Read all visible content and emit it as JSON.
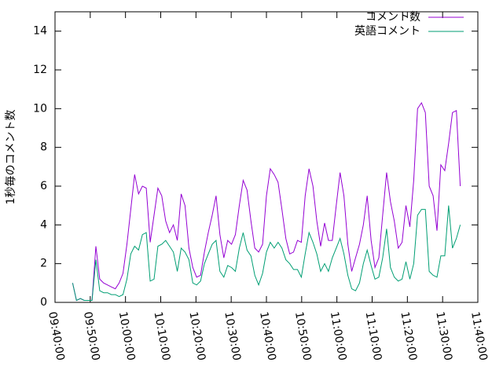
{
  "chart_data": {
    "type": "line",
    "ylabel": "1秒毎のコメント数",
    "x": [
      "09:45:00",
      "09:46:06",
      "09:47:12",
      "09:48:18",
      "09:49:24",
      "09:50:30",
      "09:51:36",
      "09:52:42",
      "09:53:48",
      "09:54:54",
      "09:56:00",
      "09:57:06",
      "09:58:12",
      "09:59:18",
      "10:00:24",
      "10:01:30",
      "10:02:36",
      "10:03:42",
      "10:04:48",
      "10:05:54",
      "10:07:00",
      "10:08:06",
      "10:09:12",
      "10:10:18",
      "10:11:24",
      "10:12:30",
      "10:13:36",
      "10:14:42",
      "10:15:48",
      "10:16:54",
      "10:18:00",
      "10:19:06",
      "10:20:12",
      "10:21:18",
      "10:22:24",
      "10:23:30",
      "10:24:36",
      "10:25:42",
      "10:26:48",
      "10:27:54",
      "10:29:00",
      "10:30:06",
      "10:31:12",
      "10:32:18",
      "10:33:24",
      "10:34:30",
      "10:35:36",
      "10:36:42",
      "10:37:48",
      "10:38:54",
      "10:40:00",
      "10:41:06",
      "10:42:12",
      "10:43:18",
      "10:44:24",
      "10:45:30",
      "10:46:36",
      "10:47:42",
      "10:48:48",
      "10:49:54",
      "10:51:00",
      "10:52:06",
      "10:53:12",
      "10:54:18",
      "10:55:24",
      "10:56:30",
      "10:57:36",
      "10:58:42",
      "10:59:48",
      "11:00:54",
      "11:02:00",
      "11:03:06",
      "11:04:12",
      "11:05:18",
      "11:06:24",
      "11:07:30",
      "11:08:36",
      "11:09:42",
      "11:10:48",
      "11:11:54",
      "11:13:00",
      "11:14:06",
      "11:15:12",
      "11:16:18",
      "11:17:24",
      "11:18:30",
      "11:19:36",
      "11:20:42",
      "11:21:48",
      "11:22:54",
      "11:24:00",
      "11:25:06",
      "11:26:12",
      "11:27:18",
      "11:28:24",
      "11:29:30",
      "11:30:36",
      "11:31:42",
      "11:32:48",
      "11:33:54",
      "11:35:00"
    ],
    "series": [
      {
        "name": "コメント数",
        "color": "#9400d3",
        "values": [
          1.0,
          0.1,
          0.2,
          0.1,
          0.1,
          0.1,
          2.9,
          1.2,
          1.0,
          0.9,
          0.8,
          0.7,
          1.0,
          1.5,
          3.0,
          4.8,
          6.6,
          5.6,
          6.0,
          5.9,
          3.1,
          4.5,
          5.9,
          5.5,
          4.2,
          3.6,
          4.0,
          3.2,
          5.6,
          5.0,
          2.8,
          1.8,
          1.3,
          1.4,
          2.6,
          3.6,
          4.5,
          5.5,
          3.5,
          2.3,
          3.2,
          3.0,
          3.5,
          5.0,
          6.3,
          5.8,
          4.2,
          2.8,
          2.6,
          3.0,
          5.5,
          6.9,
          6.6,
          6.2,
          4.8,
          3.3,
          2.5,
          2.6,
          3.2,
          3.1,
          5.5,
          6.9,
          6.0,
          4.2,
          2.9,
          4.1,
          3.2,
          3.2,
          5.0,
          6.7,
          5.5,
          3.0,
          1.6,
          2.3,
          3.0,
          4.0,
          5.5,
          3.2,
          1.8,
          2.3,
          4.5,
          6.7,
          5.2,
          4.2,
          2.8,
          3.1,
          5.0,
          3.9,
          6.3,
          10.0,
          10.3,
          9.8,
          6.0,
          5.5,
          3.7,
          7.1,
          6.8,
          8.2,
          9.8,
          9.9,
          6.0
        ]
      },
      {
        "name": "英語コメント",
        "color": "#009e73",
        "values": [
          1.0,
          0.1,
          0.2,
          0.1,
          0.1,
          0.1,
          2.2,
          0.6,
          0.5,
          0.5,
          0.4,
          0.4,
          0.3,
          0.4,
          1.2,
          2.5,
          2.9,
          2.7,
          3.5,
          3.6,
          1.1,
          1.2,
          2.9,
          3.0,
          3.2,
          2.9,
          2.6,
          1.6,
          2.8,
          2.6,
          2.2,
          1.0,
          0.9,
          1.1,
          2.0,
          2.5,
          3.0,
          3.2,
          1.6,
          1.3,
          1.9,
          1.8,
          1.6,
          2.8,
          3.6,
          2.7,
          2.4,
          1.4,
          0.9,
          1.5,
          2.6,
          3.1,
          2.8,
          3.1,
          2.8,
          2.2,
          2.0,
          1.7,
          1.7,
          1.3,
          2.5,
          3.6,
          3.1,
          2.5,
          1.6,
          2.0,
          1.6,
          2.3,
          2.8,
          3.3,
          2.5,
          1.4,
          0.7,
          0.6,
          1.0,
          2.0,
          2.7,
          1.9,
          1.2,
          1.3,
          2.3,
          3.8,
          1.8,
          1.3,
          1.1,
          1.2,
          2.1,
          1.2,
          2.0,
          4.5,
          4.8,
          4.8,
          1.6,
          1.4,
          1.3,
          2.4,
          2.4,
          5.0,
          2.8,
          3.3,
          4.0
        ]
      }
    ],
    "xlim": [
      "09:40:00",
      "11:40:00"
    ],
    "xticks": [
      "09:40:00",
      "09:50:00",
      "10:00:00",
      "10:10:00",
      "10:20:00",
      "10:30:00",
      "10:40:00",
      "10:50:00",
      "11:00:00",
      "11:10:00",
      "11:20:00",
      "11:30:00",
      "11:40:00"
    ],
    "ylim": [
      0,
      15
    ],
    "yticks": [
      0,
      2,
      4,
      6,
      8,
      10,
      12,
      14
    ],
    "legend": "top-right"
  }
}
